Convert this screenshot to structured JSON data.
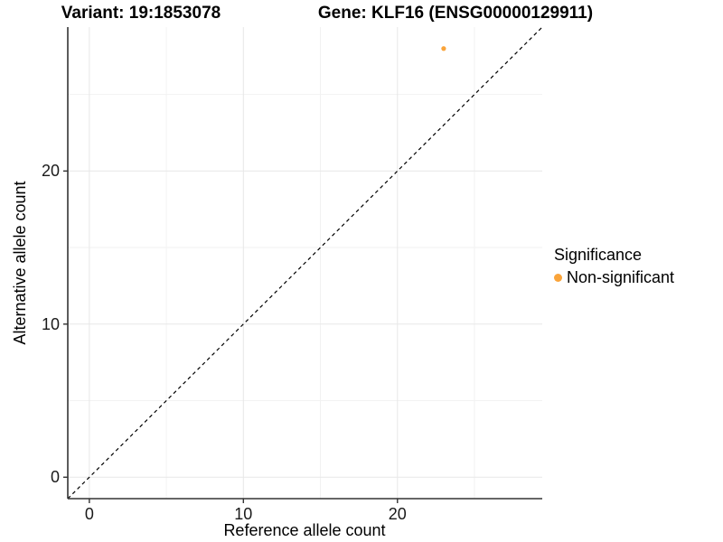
{
  "titles": {
    "variant": "Variant: 19:1853078",
    "gene": "Gene: KLF16 (ENSG00000129911)"
  },
  "axes": {
    "x": {
      "label": "Reference allele count",
      "ticks": [
        "0",
        "10",
        "20"
      ]
    },
    "y": {
      "label": "Alternative allele count",
      "ticks": [
        "0",
        "10",
        "20"
      ]
    }
  },
  "legend": {
    "title": "Significance",
    "items": [
      {
        "label": "Non-significant",
        "color": "#FAA43A"
      }
    ]
  },
  "colors": {
    "background": "#ffffff",
    "point": "#FAA43A",
    "axis_line": "#333333",
    "grid_major": "#e7e7e7",
    "grid_minor": "#f2f2f2",
    "reference_line": "#000000",
    "text": "#000000"
  },
  "chart_data": {
    "type": "scatter",
    "title": "Variant: 19:1853078 / Gene: KLF16 (ENSG00000129911)",
    "xlabel": "Reference allele count",
    "ylabel": "Alternative allele count",
    "xlim": [
      -1.4,
      29.4
    ],
    "ylim": [
      -1.4,
      29.4
    ],
    "x_major_ticks": [
      0,
      10,
      20
    ],
    "y_major_ticks": [
      0,
      10,
      20
    ],
    "x_minor_gridlines": [
      5,
      15,
      25
    ],
    "y_minor_gridlines": [
      5,
      15,
      25
    ],
    "grid": "major and minor gridlines, light gray on white panel",
    "legend_position": "right-center",
    "series": [
      {
        "name": "Non-significant",
        "color": "#FAA43A",
        "points": [
          {
            "x": 23,
            "y": 28
          }
        ]
      }
    ],
    "reference_line": {
      "type": "identity y = x",
      "style": "dashed",
      "color": "#000000"
    }
  }
}
